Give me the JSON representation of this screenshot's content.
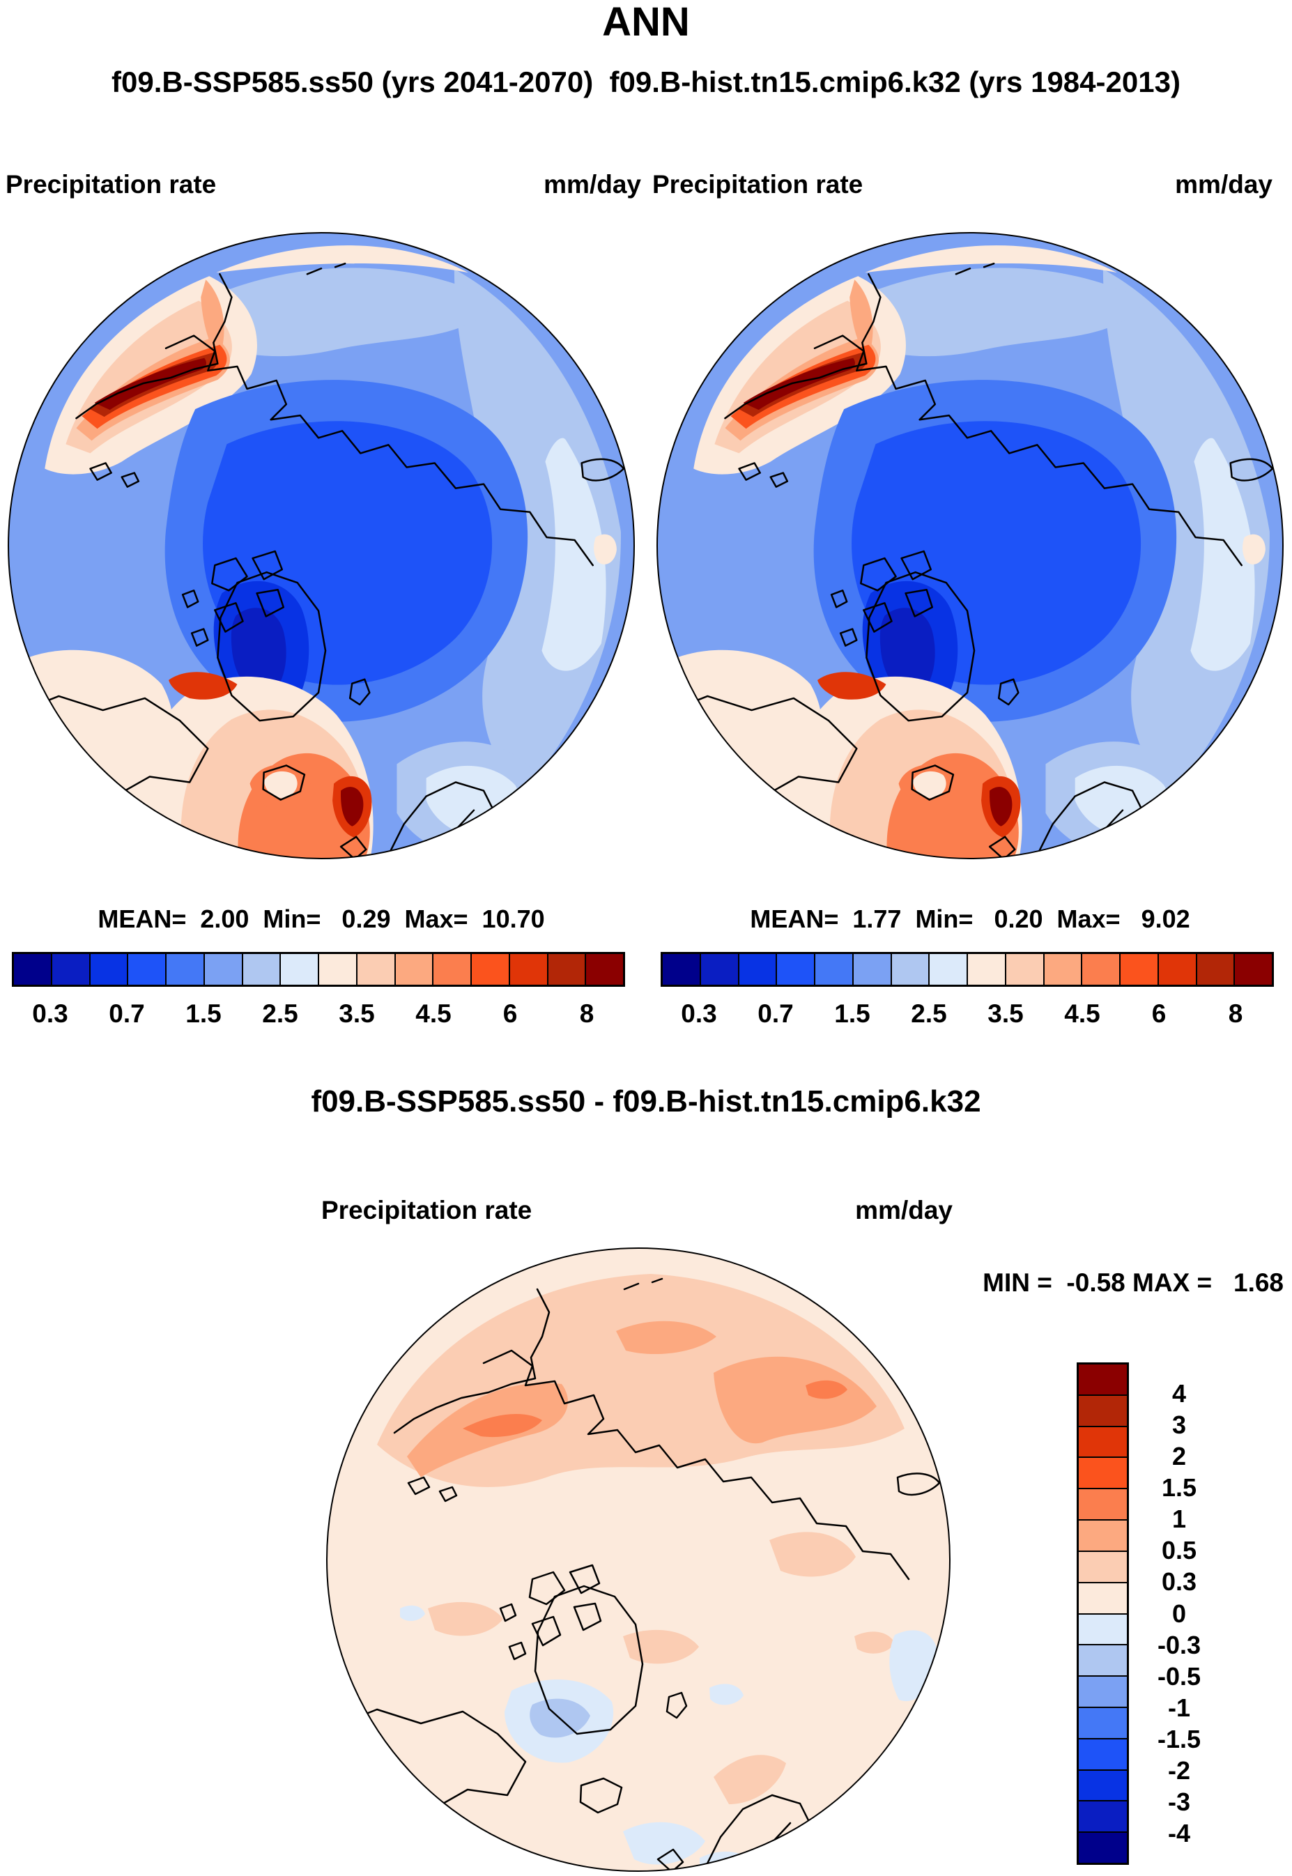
{
  "title": "ANN",
  "subtitle": "f09.B-SSP585.ss50 (yrs 2041-2070)  f09.B-hist.tn15.cmip6.k32 (yrs 1984-2013)",
  "panels": {
    "left": {
      "field_label": "Precipitation rate",
      "units": "mm/day",
      "stats_line": "MEAN=  2.00  Min=   0.29  Max=  10.70"
    },
    "right": {
      "field_label": "Precipitation rate",
      "units": "mm/day",
      "stats_line": "MEAN=  1.77  Min=   0.20  Max=   9.02"
    },
    "diff": {
      "title": "f09.B-SSP585.ss50 - f09.B-hist.tn15.cmip6.k32",
      "field_label": "Precipitation rate",
      "units": "mm/day",
      "minmax_line": "MIN =  -0.58 MAX =   1.68"
    }
  },
  "precip_colorbar": {
    "ticks": [
      "0.3",
      "0.7",
      "1.5",
      "2.5",
      "3.5",
      "4.5",
      "6",
      "8"
    ],
    "colors": [
      "#00008B",
      "#0A1EC2",
      "#0833E4",
      "#1E53F8",
      "#4478F6",
      "#7BA1F3",
      "#AFC7F1",
      "#DCEAFA",
      "#FCEADC",
      "#FBCDB3",
      "#FCA980",
      "#FB7E4E",
      "#FB531D",
      "#E03508",
      "#B22607",
      "#8B0000"
    ]
  },
  "diff_colorbar": {
    "ticks": [
      "4",
      "3",
      "2",
      "1.5",
      "1",
      "0.5",
      "0.3",
      "0",
      "-0.3",
      "-0.5",
      "-1",
      "-1.5",
      "-2",
      "-3",
      "-4"
    ],
    "colors_top_to_bottom": [
      "#8B0000",
      "#B22607",
      "#E03508",
      "#FB531D",
      "#FB7E4E",
      "#FCA980",
      "#FBCDB3",
      "#FCEADC",
      "#DCEAFA",
      "#AFC7F1",
      "#7BA1F3",
      "#4478F6",
      "#1E53F8",
      "#0833E4",
      "#0A1EC2",
      "#00008B"
    ]
  },
  "chart_data": [
    {
      "type": "heatmap",
      "panel": "top-left",
      "run": "f09.B-SSP585.ss50",
      "years": "2041-2070",
      "field": "Precipitation rate",
      "units": "mm/day",
      "stats": {
        "mean": 2.0,
        "min": 0.29,
        "max": 10.7
      },
      "colorbar": {
        "orientation": "horizontal",
        "n_segments": 16,
        "tick_labels": [
          0.3,
          0.7,
          1.5,
          2.5,
          3.5,
          4.5,
          6,
          8
        ],
        "colors": [
          "#00008B",
          "#0A1EC2",
          "#0833E4",
          "#1E53F8",
          "#4478F6",
          "#7BA1F3",
          "#AFC7F1",
          "#DCEAFA",
          "#FCEADC",
          "#FBCDB3",
          "#FCA980",
          "#FB7E4E",
          "#FB531D",
          "#E03508",
          "#B22607",
          "#8B0000"
        ]
      }
    },
    {
      "type": "heatmap",
      "panel": "top-right",
      "run": "f09.B-hist.tn15.cmip6.k32",
      "years": "1984-2013",
      "field": "Precipitation rate",
      "units": "mm/day",
      "stats": {
        "mean": 1.77,
        "min": 0.2,
        "max": 9.02
      },
      "colorbar": {
        "orientation": "horizontal",
        "n_segments": 16,
        "tick_labels": [
          0.3,
          0.7,
          1.5,
          2.5,
          3.5,
          4.5,
          6,
          8
        ],
        "colors": [
          "#00008B",
          "#0A1EC2",
          "#0833E4",
          "#1E53F8",
          "#4478F6",
          "#7BA1F3",
          "#AFC7F1",
          "#DCEAFA",
          "#FCEADC",
          "#FBCDB3",
          "#FCA980",
          "#FB7E4E",
          "#FB531D",
          "#E03508",
          "#B22607",
          "#8B0000"
        ]
      }
    },
    {
      "type": "heatmap",
      "panel": "bottom-difference",
      "run": "f09.B-SSP585.ss50 - f09.B-hist.tn15.cmip6.k32",
      "field": "Precipitation rate",
      "units": "mm/day",
      "stats": {
        "min": -0.58,
        "max": 1.68
      },
      "colorbar": {
        "orientation": "vertical",
        "n_segments": 16,
        "tick_labels": [
          4,
          3,
          2,
          1.5,
          1,
          0.5,
          0.3,
          0,
          -0.3,
          -0.5,
          -1,
          -1.5,
          -2,
          -3,
          -4
        ],
        "colors_top_to_bottom": [
          "#8B0000",
          "#B22607",
          "#E03508",
          "#FB531D",
          "#FB7E4E",
          "#FCA980",
          "#FBCDB3",
          "#FCEADC",
          "#DCEAFA",
          "#AFC7F1",
          "#7BA1F3",
          "#4478F6",
          "#1E53F8",
          "#0833E4",
          "#0A1EC2",
          "#00008B"
        ]
      }
    }
  ]
}
